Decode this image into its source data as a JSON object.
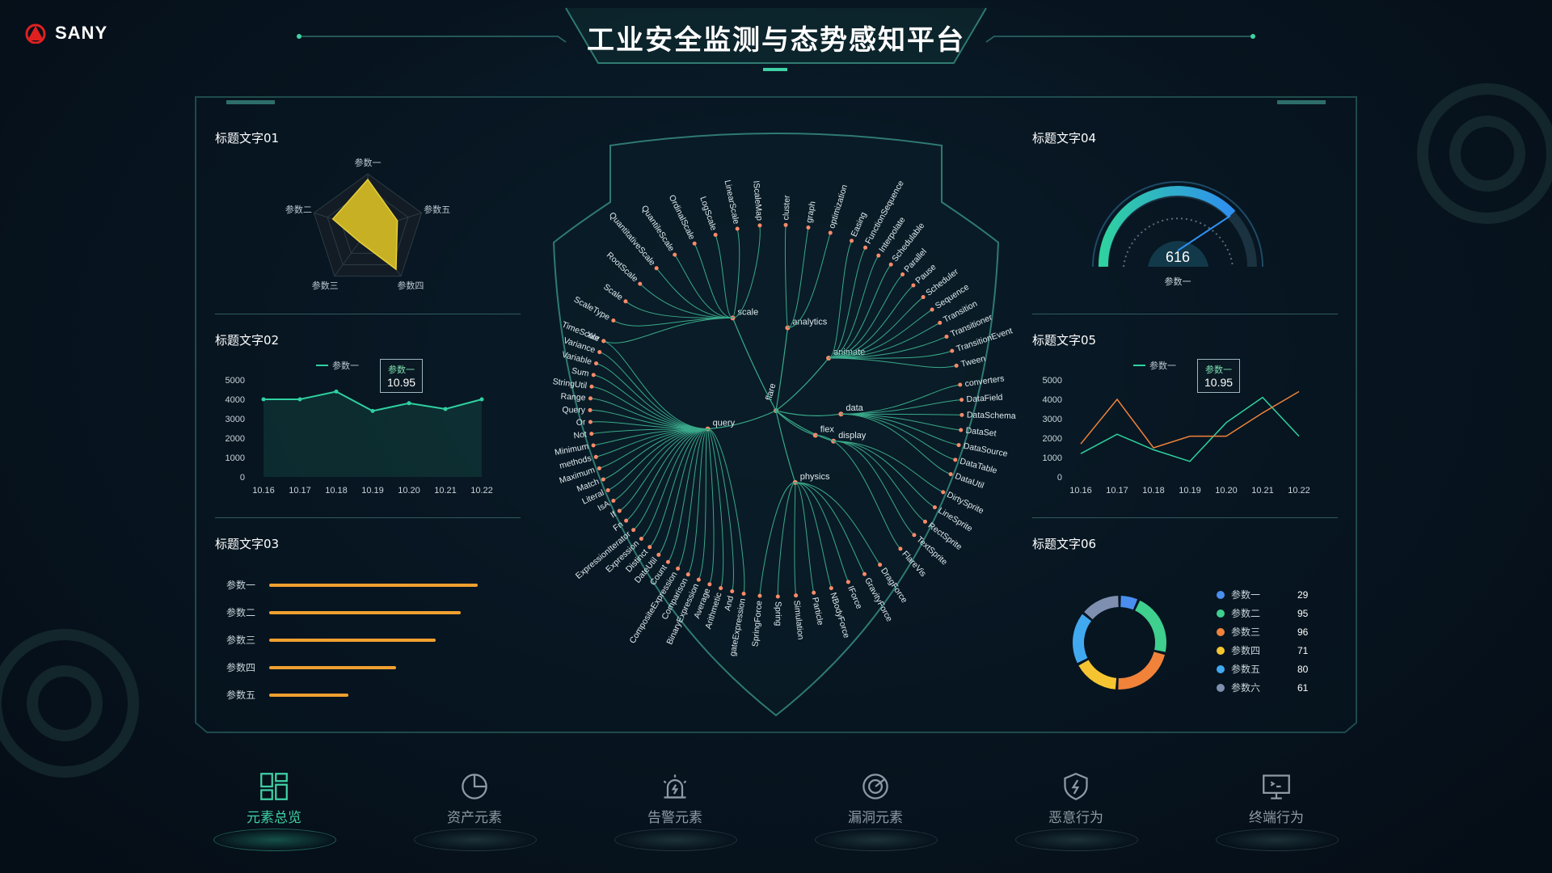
{
  "brand": {
    "name": "SANY"
  },
  "header": {
    "title": "工业安全监测与态势感知平台"
  },
  "panels": {
    "p1": {
      "title": "标题文字01",
      "radar_labels": [
        "参数一",
        "参数五",
        "参数四",
        "参数三",
        "参数二"
      ]
    },
    "p2": {
      "title": "标题文字02",
      "legend": "参数一",
      "tooltip": {
        "label": "参数一",
        "value": "10.95"
      },
      "y_ticks": [
        "5000",
        "4000",
        "3000",
        "2000",
        "1000",
        "0"
      ],
      "x_ticks": [
        "10.16",
        "10.17",
        "10.18",
        "10.19",
        "10.20",
        "10.21",
        "10.22"
      ]
    },
    "p3": {
      "title": "标题文字03",
      "bars": [
        {
          "label": "参数一",
          "value": 100
        },
        {
          "label": "参数二",
          "value": 92
        },
        {
          "label": "参数三",
          "value": 80
        },
        {
          "label": "参数四",
          "value": 61
        },
        {
          "label": "参数五",
          "value": 38
        }
      ]
    },
    "p4": {
      "title": "标题文字04",
      "gauge_value": "616",
      "gauge_label": "参数一"
    },
    "p5": {
      "title": "标题文字05",
      "legend": "参数一",
      "tooltip": {
        "label": "参数一",
        "value": "10.95"
      },
      "y_ticks": [
        "5000",
        "4000",
        "3000",
        "2000",
        "1000",
        "0"
      ],
      "x_ticks": [
        "10.16",
        "10.17",
        "10.18",
        "10.19",
        "10.20",
        "10.21",
        "10.22"
      ]
    },
    "p6": {
      "title": "标题文字06",
      "legend": [
        {
          "label": "参数一",
          "value": "29",
          "color": "#4a8ff0"
        },
        {
          "label": "参数二",
          "value": "95",
          "color": "#3fcf8e"
        },
        {
          "label": "参数三",
          "value": "96",
          "color": "#f0823a"
        },
        {
          "label": "参数四",
          "value": "71",
          "color": "#f5c531"
        },
        {
          "label": "参数五",
          "value": "80",
          "color": "#41a9f0"
        },
        {
          "label": "参数六",
          "value": "61",
          "color": "#7f8fb0"
        }
      ]
    }
  },
  "nav": [
    {
      "label": "元素总览",
      "icon": "dashboard-grid-icon",
      "active": true
    },
    {
      "label": "资产元素",
      "icon": "pie-chart-icon",
      "active": false
    },
    {
      "label": "告警元素",
      "icon": "alarm-siren-icon",
      "active": false
    },
    {
      "label": "漏洞元素",
      "icon": "radar-scan-icon",
      "active": false
    },
    {
      "label": "恶意行为",
      "icon": "shield-bolt-icon",
      "active": false
    },
    {
      "label": "终端行为",
      "icon": "monitor-terminal-icon",
      "active": false
    }
  ],
  "tree": {
    "root": "flare",
    "branches": [
      {
        "name": "scale",
        "leaves": [
          "TimeScale",
          "ScaleType",
          "Scale",
          "RootScale",
          "QuantitativeScale",
          "QuantileScale",
          "OrdinalScale",
          "LogScale",
          "LinearScale",
          "IScaleMap"
        ]
      },
      {
        "name": "analytics",
        "leaves": [
          "cluster",
          "graph",
          "optimization"
        ]
      },
      {
        "name": "animate",
        "leaves": [
          "Easing",
          "FunctionSequence",
          "Interpolate",
          "Schedulable",
          "Parallel",
          "Pause",
          "Scheduler",
          "Sequence",
          "Transition",
          "Transitioner",
          "TransitionEvent",
          "Tween"
        ]
      },
      {
        "name": "data",
        "leaves": [
          "converters",
          "DataField",
          "DataSchema",
          "DataSet",
          "DataSource",
          "DataTable",
          "DataUtil"
        ]
      },
      {
        "name": "display",
        "leaves": [
          "DirtySprite",
          "LineSprite",
          "RectSprite",
          "TextSprite"
        ]
      },
      {
        "name": "flex",
        "leaves": [
          "FlareVis"
        ]
      },
      {
        "name": "physics",
        "leaves": [
          "DragForce",
          "GravityForce",
          "IForce",
          "NBodyForce",
          "Particle",
          "Simulation",
          "Spring",
          "SpringForce"
        ]
      },
      {
        "name": "query",
        "leaves": [
          "gateExpression",
          "And",
          "Arithmetic",
          "Average",
          "BinaryExpression",
          "Comparison",
          "CompositeExpression",
          "Count",
          "DateUtil",
          "Distinct",
          "Expression",
          "ExpressionIterator",
          "Fn",
          "If",
          "IsA",
          "Literal",
          "Match",
          "Maximum",
          "methods",
          "Minimum",
          "Not",
          "Or",
          "Query",
          "Range",
          "StringUtil",
          "Sum",
          "Variable",
          "Variance",
          "Xor"
        ]
      }
    ]
  },
  "chart_data": [
    {
      "type": "radar",
      "categories": [
        "参数一",
        "参数五",
        "参数四",
        "参数三",
        "参数二"
      ],
      "values": [
        0.9,
        0.55,
        0.85,
        0.25,
        0.65
      ],
      "ylim": [
        0,
        1
      ]
    },
    {
      "type": "area",
      "categories": [
        "10.16",
        "10.17",
        "10.18",
        "10.19",
        "10.20",
        "10.21",
        "10.22"
      ],
      "series": [
        {
          "name": "参数一",
          "values": [
            4000,
            4000,
            4400,
            3400,
            3800,
            3500,
            4000
          ]
        }
      ],
      "ylim": [
        0,
        5000
      ]
    },
    {
      "type": "bar",
      "categories": [
        "参数一",
        "参数二",
        "参数三",
        "参数四",
        "参数五"
      ],
      "values": [
        100,
        92,
        80,
        61,
        38
      ]
    },
    {
      "type": "gauge",
      "values": [
        616
      ]
    },
    {
      "type": "line",
      "categories": [
        "10.16",
        "10.17",
        "10.18",
        "10.19",
        "10.20",
        "10.21",
        "10.22"
      ],
      "series": [
        {
          "name": "参数一",
          "values": [
            1200,
            2200,
            1400,
            800,
            2800,
            4100,
            2100
          ],
          "color": "#2fd1a0"
        },
        {
          "values": [
            1700,
            4000,
            1500,
            2100,
            2100,
            3300,
            4400
          ],
          "color": "#f0823a"
        }
      ],
      "ylim": [
        0,
        5000
      ]
    },
    {
      "type": "pie",
      "categories": [
        "参数一",
        "参数二",
        "参数三",
        "参数四",
        "参数五",
        "参数六"
      ],
      "values": [
        29,
        95,
        96,
        71,
        80,
        61
      ]
    }
  ]
}
